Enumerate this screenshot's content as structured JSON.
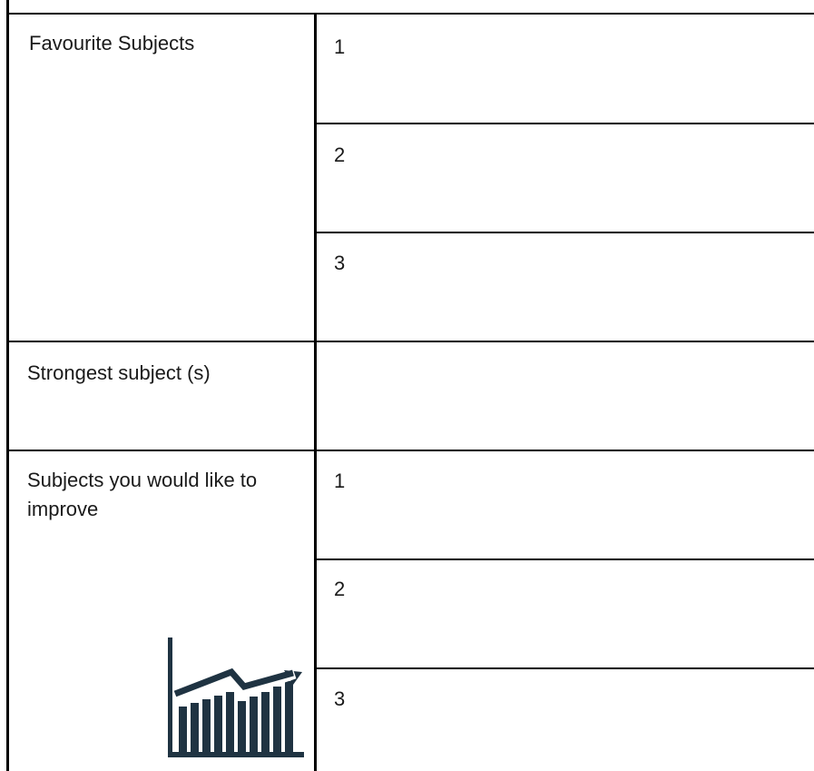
{
  "sections": [
    {
      "label": "Favourite Subjects",
      "rows": [
        "1",
        "2",
        "3"
      ]
    },
    {
      "label": "Strongest subject (s)",
      "rows": [
        ""
      ]
    },
    {
      "label": "Subjects you would like to improve",
      "rows": [
        "1",
        "2",
        "3"
      ]
    }
  ],
  "icon": "growth-chart-icon",
  "colors": {
    "border": "#000000",
    "text": "#1a1a1a",
    "icon": "#1f3342"
  }
}
